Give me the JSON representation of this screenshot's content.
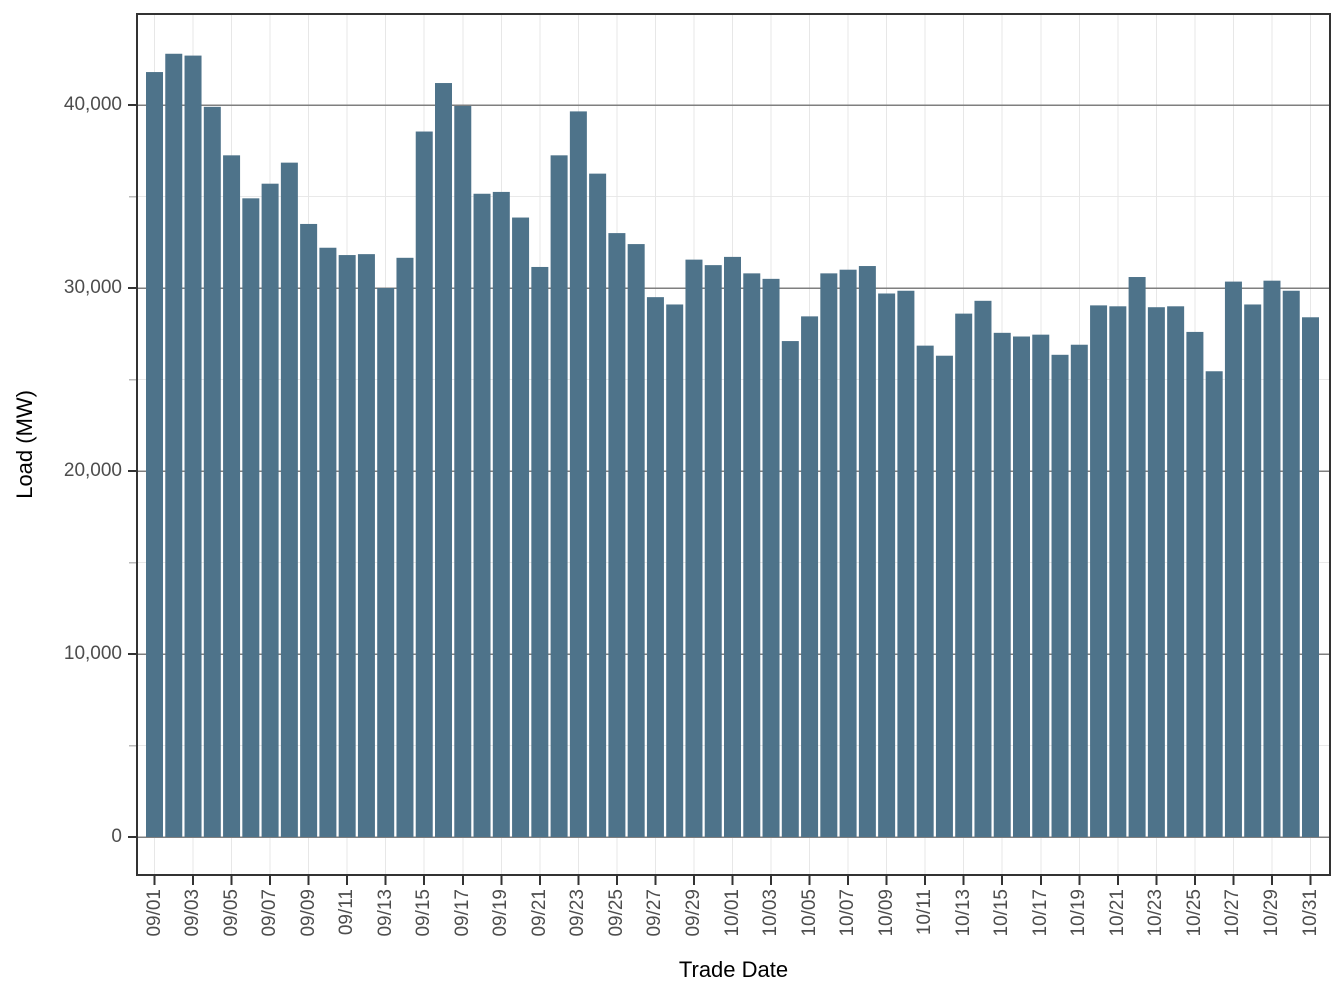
{
  "axes": {
    "x_title": "Trade Date",
    "y_title": "Load (MW)",
    "y_tick_labels": [
      "0",
      "10,000",
      "20,000",
      "30,000",
      "40,000"
    ],
    "x_tick_labels": [
      "09/01",
      "09/03",
      "09/05",
      "09/07",
      "09/09",
      "09/11",
      "09/13",
      "09/15",
      "09/17",
      "09/19",
      "09/21",
      "09/23",
      "09/25",
      "09/27",
      "09/29",
      "10/01",
      "10/03",
      "10/05",
      "10/07",
      "10/09",
      "10/11",
      "10/13",
      "10/15",
      "10/17",
      "10/19",
      "10/21",
      "10/23",
      "10/25",
      "10/27",
      "10/29",
      "10/31"
    ]
  },
  "chart_data": {
    "type": "bar",
    "title": "",
    "xlabel": "Trade Date",
    "ylabel": "Load (MW)",
    "categories": [
      "09/01",
      "09/02",
      "09/03",
      "09/04",
      "09/05",
      "09/06",
      "09/07",
      "09/08",
      "09/09",
      "09/10",
      "09/11",
      "09/12",
      "09/13",
      "09/14",
      "09/15",
      "09/16",
      "09/17",
      "09/18",
      "09/19",
      "09/20",
      "09/21",
      "09/22",
      "09/23",
      "09/24",
      "09/25",
      "09/26",
      "09/27",
      "09/28",
      "09/29",
      "09/30",
      "10/01",
      "10/02",
      "10/03",
      "10/04",
      "10/05",
      "10/06",
      "10/07",
      "10/08",
      "10/09",
      "10/10",
      "10/11",
      "10/12",
      "10/13",
      "10/14",
      "10/15",
      "10/16",
      "10/17",
      "10/18",
      "10/19",
      "10/20",
      "10/21",
      "10/22",
      "10/23",
      "10/24",
      "10/25",
      "10/26",
      "10/27",
      "10/28",
      "10/29",
      "10/30",
      "10/31"
    ],
    "values": [
      41800,
      42800,
      42700,
      39900,
      37250,
      34900,
      35700,
      36850,
      33500,
      32200,
      31800,
      31850,
      30000,
      31650,
      38550,
      41200,
      39950,
      35150,
      35250,
      33850,
      31150,
      37250,
      39650,
      36250,
      33000,
      32400,
      29500,
      29100,
      31550,
      31250,
      31700,
      30800,
      30500,
      27100,
      28450,
      30800,
      31000,
      31200,
      29700,
      29850,
      26850,
      26300,
      28600,
      29300,
      27550,
      27350,
      27450,
      26350,
      26900,
      29050,
      29000,
      30600,
      28950,
      29000,
      27600,
      25450,
      30350,
      29100,
      30400,
      29850,
      28400
    ],
    "ylim": [
      0,
      45000
    ],
    "y_major_ticks": [
      0,
      10000,
      20000,
      30000,
      40000
    ],
    "y_minor_ticks": [
      5000,
      15000,
      25000,
      35000
    ],
    "x_tick_every": 2,
    "grid": {
      "horizontal_major": true,
      "horizontal_minor": true,
      "vertical_major": true
    },
    "legend": "none",
    "style": {
      "bar_fill": "#4E738A",
      "panel_border": "#333333",
      "grid_major_color": "#7f7f7f",
      "grid_minor_color": "#e9e9e9",
      "grid_vertical_color": "#e7e7e7",
      "tick_color": "#333333",
      "minor_tick_color": "#bbbbbb",
      "axis_text_color": "#4d4d4d",
      "axis_title_color": "#000000",
      "background": "#ffffff"
    }
  }
}
